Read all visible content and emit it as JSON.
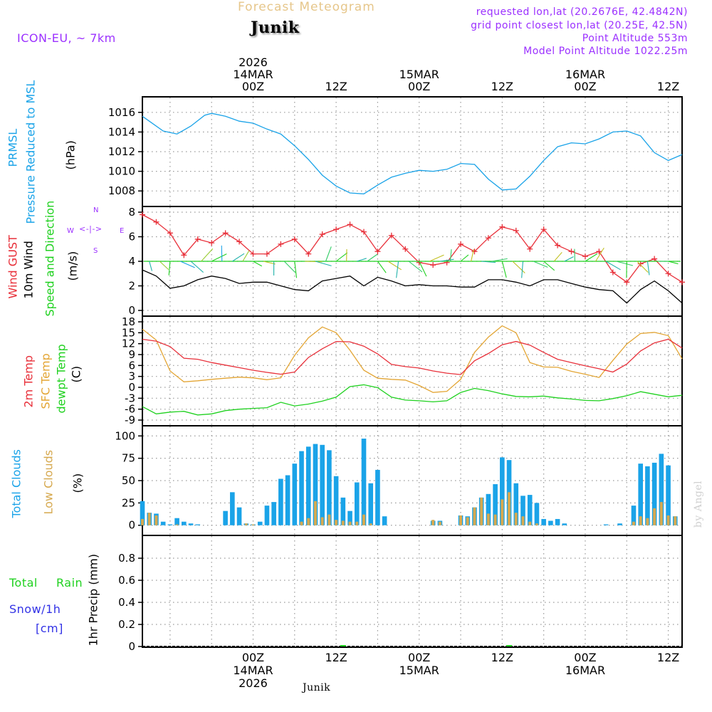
{
  "header": {
    "title": "Forecast Meteogram",
    "location": "Junik",
    "model": "ICON-EU, ~ 7km",
    "requested": "requested lon,lat (20.2676E, 42.4842N)",
    "gridpoint": "grid point closest lon,lat (20.25E, 42.5N)",
    "point_altitude": "Point Altitude 553m",
    "model_altitude": "Model Point Altitude 1022.25m",
    "credit": "by Angel",
    "footer_location": "Junik"
  },
  "time_axis": {
    "start_hour_offset": -16,
    "end_hour_offset": 62,
    "top_labels": [
      {
        "h": 0,
        "lines": [
          "2026",
          "14MAR",
          "00Z"
        ]
      },
      {
        "h": 12,
        "lines": [
          "12Z"
        ]
      },
      {
        "h": 24,
        "lines": [
          "15MAR",
          "00Z"
        ]
      },
      {
        "h": 36,
        "lines": [
          "12Z"
        ]
      },
      {
        "h": 48,
        "lines": [
          "16MAR",
          "00Z"
        ]
      },
      {
        "h": 60,
        "lines": [
          "12Z"
        ]
      }
    ],
    "bottom_labels": [
      {
        "h": 0,
        "lines": [
          "00Z",
          "14MAR",
          "2026"
        ]
      },
      {
        "h": 12,
        "lines": [
          "12Z"
        ]
      },
      {
        "h": 24,
        "lines": [
          "00Z",
          "15MAR"
        ]
      },
      {
        "h": 36,
        "lines": [
          "12Z"
        ]
      },
      {
        "h": 48,
        "lines": [
          "00Z",
          "16MAR"
        ]
      },
      {
        "h": 60,
        "lines": [
          "12Z"
        ]
      }
    ]
  },
  "colors": {
    "pressure": "#1aa3e8",
    "gust": "#e8303a",
    "wind": "#000000",
    "sfc_temp": "#e3a534",
    "temp2m": "#e8303a",
    "dewpt": "#1fd11f",
    "total_clouds": "#1aa3e8",
    "low_clouds": "#d6a94f",
    "rain": "#1fd11f",
    "snow": "#3232e6",
    "grid": "#999999",
    "label_purple": "#9b30ff"
  },
  "panel_labels": {
    "pressure": {
      "name1": "PRMSL",
      "name2": "Pressure Reduced to MSL",
      "unit": "(hPa)"
    },
    "wind": {
      "gust": "Wind GUST",
      "wind": "10m Wind",
      "dir": "Speed and Direction",
      "unit": "(m/s)",
      "compass_n": "N",
      "compass_s": "S",
      "compass_w": "W",
      "compass_e": "E"
    },
    "temp": {
      "t2m": "2m Temp",
      "sfc": "SFC Temp",
      "dew": "dewpt Temp",
      "unit": "(C)"
    },
    "clouds": {
      "total": "Total Clouds",
      "low": "Low Clouds",
      "unit": "(%)"
    },
    "precip": {
      "total": "Total",
      "rain": "Rain",
      "snow": "Snow/1h",
      "snow_unit": "[cm]",
      "title": "1hr Precip (mm)"
    }
  },
  "chart_data": [
    {
      "type": "line",
      "title": "PRMSL Pressure Reduced to MSL",
      "ylabel": "(hPa)",
      "ylim": [
        1007,
        1017
      ],
      "yticks": [
        1008,
        1010,
        1012,
        1014,
        1016
      ],
      "x_hours": [
        -16,
        -15,
        -13,
        -11,
        -9,
        -7,
        -6,
        -4,
        -2,
        0,
        2,
        4,
        6,
        8,
        10,
        12,
        14,
        16,
        18,
        20,
        22,
        24,
        26,
        28,
        30,
        32,
        34,
        36,
        38,
        40,
        42,
        44,
        46,
        48,
        50,
        52,
        54,
        56,
        58,
        60,
        62
      ],
      "series": [
        {
          "name": "PRMSL",
          "values": [
            1015.6,
            1015.1,
            1014.1,
            1013.8,
            1014.6,
            1015.7,
            1015.9,
            1015.6,
            1015.1,
            1014.9,
            1014.3,
            1013.8,
            1012.6,
            1011.2,
            1009.6,
            1008.5,
            1007.8,
            1007.7,
            1008.6,
            1009.4,
            1009.8,
            1010.1,
            1010.0,
            1010.2,
            1010.8,
            1010.7,
            1009.2,
            1008.1,
            1008.2,
            1009.5,
            1011.1,
            1012.5,
            1012.9,
            1012.8,
            1013.3,
            1014.0,
            1014.1,
            1013.6,
            1011.9,
            1011.1,
            1011.7
          ]
        }
      ]
    },
    {
      "type": "line",
      "title": "Wind GUST / 10m Wind Speed and Direction",
      "ylabel": "(m/s)",
      "ylim": [
        0,
        8
      ],
      "yticks": [
        0,
        2,
        4,
        6,
        8
      ],
      "x_hours": [
        -16,
        -14,
        -12,
        -10,
        -8,
        -6,
        -4,
        -2,
        0,
        2,
        4,
        6,
        8,
        10,
        12,
        14,
        16,
        18,
        20,
        22,
        24,
        26,
        28,
        30,
        32,
        34,
        36,
        38,
        40,
        42,
        44,
        46,
        48,
        50,
        52,
        54,
        56,
        58,
        60,
        62
      ],
      "series": [
        {
          "name": "Wind GUST",
          "marker": "+",
          "values": [
            7.8,
            7.2,
            6.3,
            4.5,
            5.8,
            5.5,
            6.3,
            5.6,
            4.6,
            4.6,
            5.4,
            5.8,
            4.6,
            6.2,
            6.6,
            7.0,
            6.4,
            4.8,
            6.1,
            5.0,
            3.9,
            3.7,
            3.9,
            5.4,
            4.8,
            5.9,
            6.8,
            6.5,
            5.0,
            6.6,
            5.3,
            4.8,
            4.4,
            4.8,
            3.1,
            2.3,
            3.8,
            4.2,
            3.0,
            2.3
          ]
        },
        {
          "name": "10m Wind",
          "values": [
            3.3,
            2.8,
            1.8,
            2.0,
            2.5,
            2.8,
            2.6,
            2.2,
            2.3,
            2.3,
            2.0,
            1.7,
            1.6,
            2.4,
            2.6,
            2.8,
            2.0,
            2.7,
            2.4,
            2.0,
            2.1,
            2.0,
            2.0,
            1.9,
            1.9,
            2.5,
            2.5,
            2.3,
            2.0,
            2.5,
            2.5,
            2.2,
            1.9,
            1.7,
            1.6,
            0.6,
            1.7,
            2.4,
            1.6,
            0.6
          ]
        }
      ],
      "wind_direction_arrows": "present along 4 m/s line, colored by speed"
    },
    {
      "type": "line",
      "title": "2m Temp / SFC Temp / dewpt Temp",
      "ylabel": "(C)",
      "ylim": [
        -9,
        18
      ],
      "yticks": [
        -9,
        -6,
        -3,
        0,
        3,
        6,
        9,
        12,
        15,
        18
      ],
      "x_hours": [
        -16,
        -14,
        -12,
        -10,
        -8,
        -6,
        -4,
        -2,
        0,
        2,
        4,
        6,
        8,
        10,
        12,
        14,
        16,
        18,
        20,
        22,
        24,
        26,
        28,
        30,
        32,
        34,
        36,
        38,
        40,
        42,
        44,
        46,
        48,
        50,
        52,
        54,
        56,
        58,
        60,
        62
      ],
      "series": [
        {
          "name": "2m Temp",
          "values": [
            13.2,
            12.7,
            11.2,
            8.0,
            7.7,
            6.8,
            6.1,
            5.4,
            4.7,
            4.1,
            3.6,
            4.2,
            8.2,
            10.6,
            12.6,
            12.5,
            11.3,
            9.2,
            6.3,
            5.7,
            5.3,
            4.5,
            3.9,
            3.5,
            7.3,
            9.3,
            11.7,
            12.6,
            11.6,
            9.6,
            7.7,
            6.8,
            5.9,
            5.1,
            4.2,
            6.4,
            10.0,
            12.2,
            13.2,
            10.8
          ]
        },
        {
          "name": "SFC Temp",
          "values": [
            16.0,
            13.0,
            4.5,
            1.5,
            1.8,
            2.2,
            2.5,
            2.8,
            2.6,
            2.1,
            2.6,
            8.8,
            13.6,
            16.6,
            15.0,
            10.2,
            4.7,
            2.5,
            2.2,
            2.0,
            0.5,
            -1.4,
            -1.1,
            2.2,
            9.6,
            13.8,
            16.9,
            15.0,
            6.8,
            5.6,
            5.5,
            4.4,
            3.6,
            2.7,
            7.4,
            11.9,
            14.8,
            15.1,
            14.2,
            7.8
          ]
        },
        {
          "name": "dewpt Temp",
          "values": [
            -5.3,
            -7.3,
            -6.8,
            -6.6,
            -7.6,
            -7.3,
            -6.4,
            -6.0,
            -5.8,
            -5.6,
            -4.1,
            -5.1,
            -4.6,
            -3.8,
            -2.7,
            0.2,
            0.7,
            -0.1,
            -2.7,
            -3.5,
            -3.7,
            -4.0,
            -3.7,
            -1.4,
            -0.3,
            -0.9,
            -1.8,
            -2.5,
            -2.6,
            -2.4,
            -2.9,
            -3.2,
            -3.6,
            -3.7,
            -3.1,
            -2.3,
            -1.2,
            -1.9,
            -2.6,
            -2.2
          ]
        }
      ]
    },
    {
      "type": "bar",
      "title": "Total Clouds / Low Clouds",
      "ylabel": "(%)",
      "ylim": [
        -5,
        105
      ],
      "yticks": [
        0,
        25,
        50,
        75,
        100
      ],
      "x_hours": [
        -16,
        -15,
        -14,
        -13,
        -12,
        -11,
        -10,
        -9,
        -8,
        -7,
        -6,
        -5,
        -4,
        -3,
        -2,
        -1,
        0,
        1,
        2,
        3,
        4,
        5,
        6,
        7,
        8,
        9,
        10,
        11,
        12,
        13,
        14,
        15,
        16,
        17,
        18,
        19,
        20,
        21,
        22,
        23,
        24,
        25,
        26,
        27,
        28,
        29,
        30,
        31,
        32,
        33,
        34,
        35,
        36,
        37,
        38,
        39,
        40,
        41,
        42,
        43,
        44,
        45,
        46,
        47,
        48,
        49,
        50,
        51,
        52,
        53,
        54,
        55,
        56,
        57,
        58,
        59,
        60,
        61,
        62
      ],
      "series": [
        {
          "name": "Total Clouds",
          "values": [
            27,
            14,
            13,
            4,
            1,
            8,
            4,
            2,
            1,
            0,
            0,
            0,
            16,
            37,
            20,
            2,
            1,
            4,
            22,
            26,
            52,
            56,
            69,
            83,
            88,
            91,
            90,
            84,
            55,
            31,
            16,
            48,
            97,
            47,
            62,
            10,
            0,
            0,
            0,
            0,
            0,
            0,
            5,
            5,
            0,
            0,
            11,
            10,
            20,
            31,
            35,
            46,
            76,
            73,
            47,
            33,
            34,
            25,
            7,
            5,
            7,
            2,
            0,
            0,
            0,
            0,
            0,
            1,
            0,
            2,
            0,
            22,
            69,
            66,
            70,
            80,
            67,
            10,
            0
          ]
        },
        {
          "name": "Low Clouds",
          "values": [
            7,
            14,
            11,
            0,
            0,
            1,
            0,
            0,
            0,
            0,
            0,
            0,
            0,
            0,
            0,
            2,
            1,
            0,
            0,
            0,
            0,
            0,
            0,
            4,
            8,
            27,
            9,
            12,
            6,
            5,
            4,
            4,
            12,
            2,
            0,
            0,
            0,
            0,
            0,
            0,
            0,
            0,
            6,
            4,
            0,
            0,
            11,
            9,
            20,
            31,
            13,
            12,
            29,
            37,
            14,
            10,
            4,
            2,
            0,
            0,
            0,
            0,
            0,
            0,
            0,
            0,
            0,
            0,
            0,
            0,
            0,
            4,
            10,
            8,
            19,
            26,
            11,
            10,
            0
          ]
        }
      ]
    },
    {
      "type": "bar",
      "title": "1hr Precip (mm)",
      "ylabel": "1hr Precip (mm)",
      "ylim": [
        0,
        1.0
      ],
      "yticks": [
        0,
        0.2,
        0.4,
        0.6,
        0.8
      ],
      "series": [
        {
          "name": "Total Rain",
          "points": [
            {
              "h": 13,
              "v": 0.01
            },
            {
              "h": 37,
              "v": 0.01
            }
          ]
        },
        {
          "name": "Snow/1h",
          "points": []
        }
      ]
    }
  ]
}
